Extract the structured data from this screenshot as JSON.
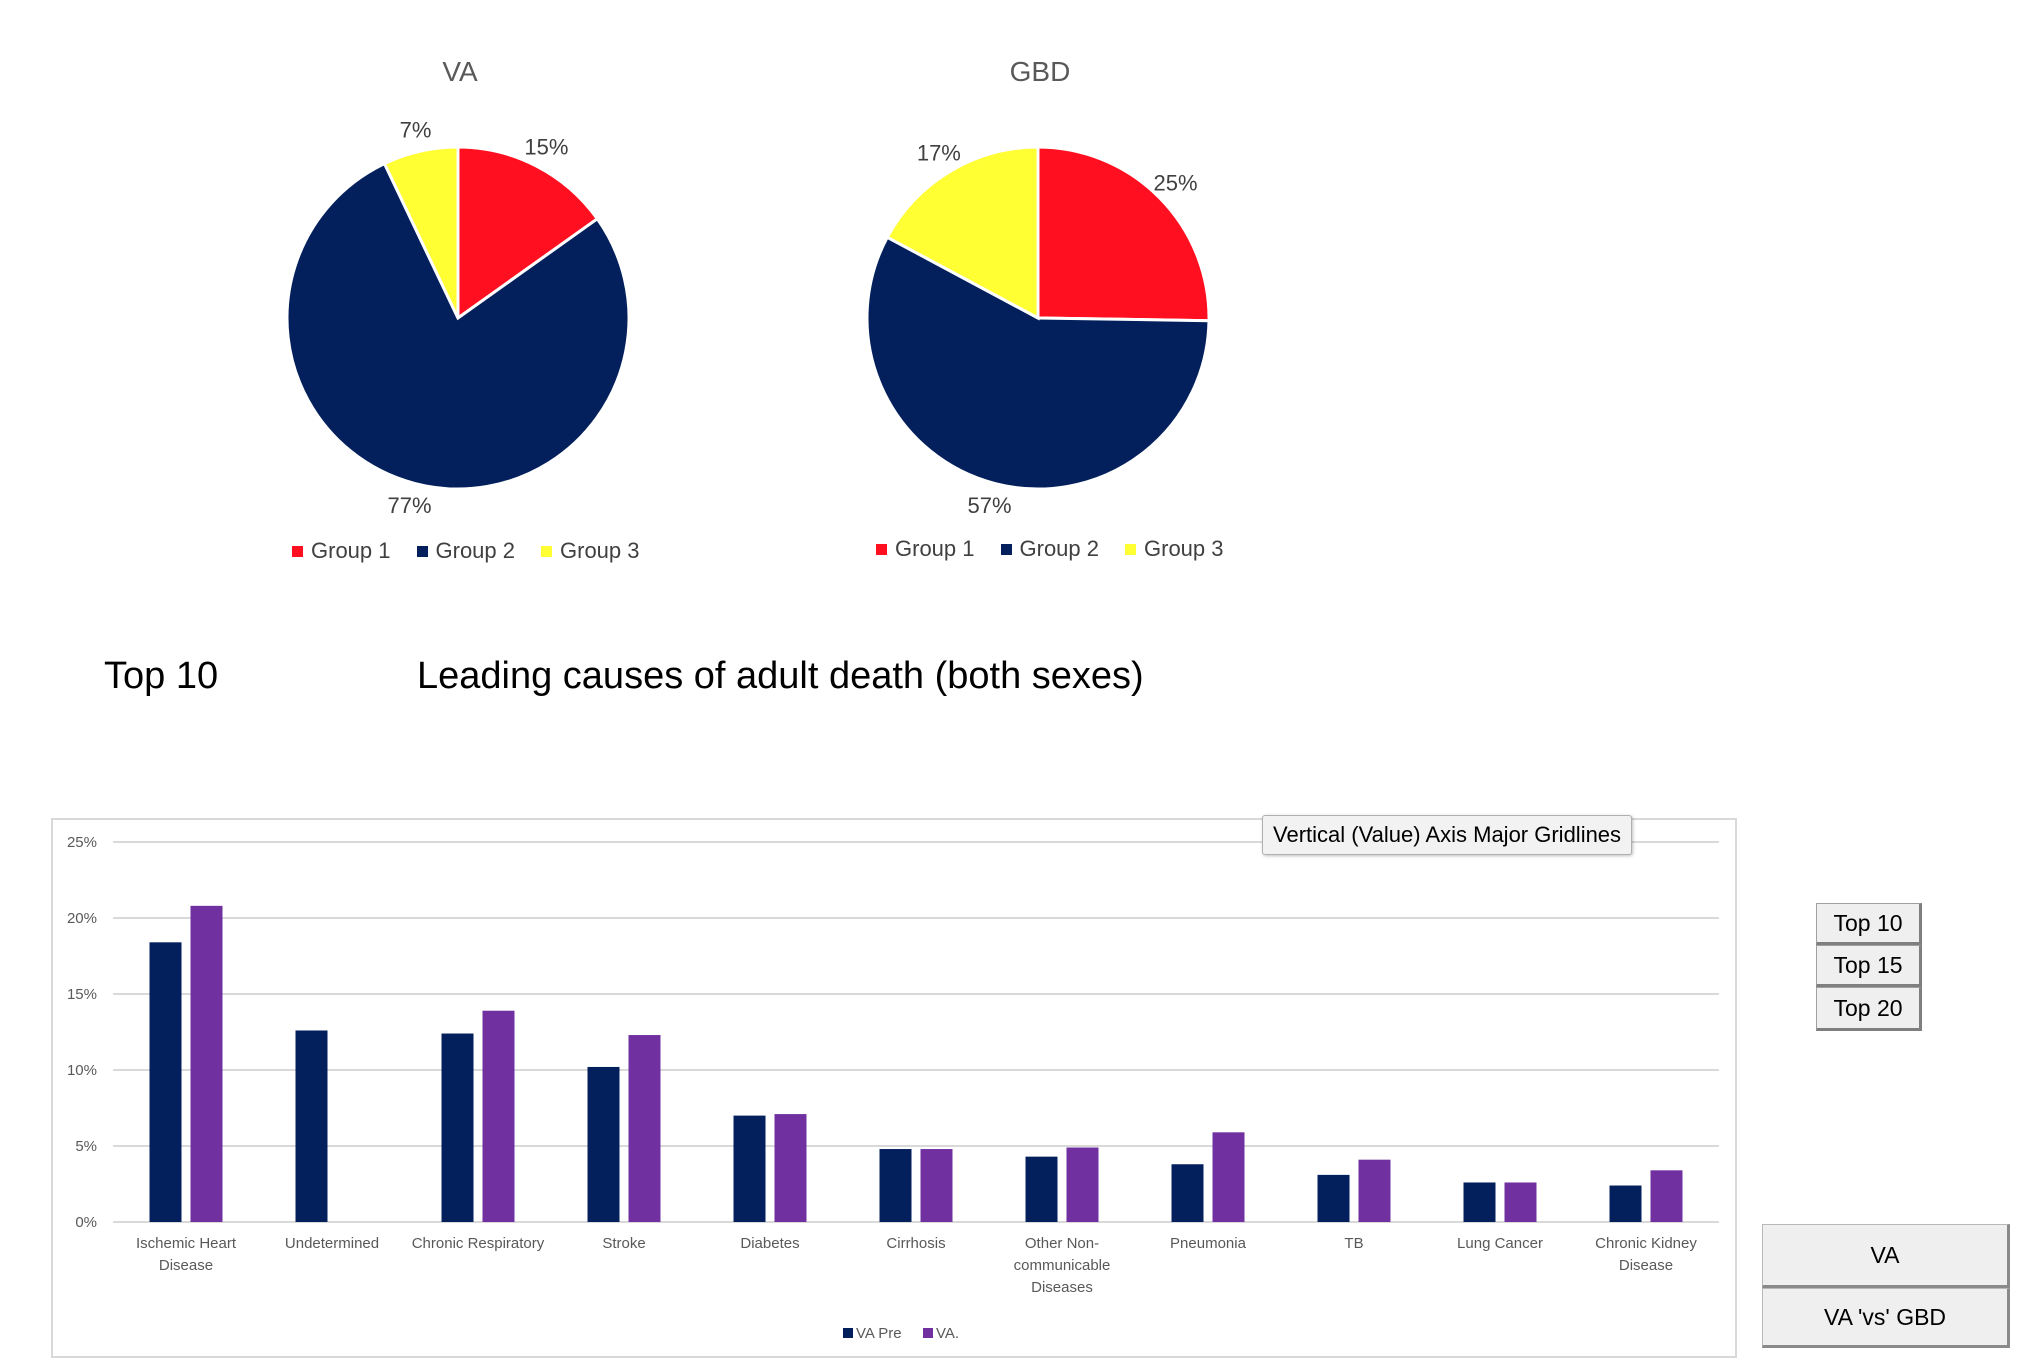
{
  "pie_charts": [
    {
      "title": "VA",
      "slices": [
        {
          "label": "Group 1",
          "value": 15,
          "pct_label": "15%",
          "color": "#ff0f1f"
        },
        {
          "label": "Group 2",
          "value": 77,
          "pct_label": "77%",
          "color": "#03205c"
        },
        {
          "label": "Group 3",
          "value": 7,
          "pct_label": "7%",
          "color": "#ffff33"
        }
      ]
    },
    {
      "title": "GBD",
      "slices": [
        {
          "label": "Group 1",
          "value": 25,
          "pct_label": "25%",
          "color": "#ff0f1f"
        },
        {
          "label": "Group 2",
          "value": 57,
          "pct_label": "57%",
          "color": "#03205c"
        },
        {
          "label": "Group 3",
          "value": 17,
          "pct_label": "17%",
          "color": "#ffff33"
        }
      ]
    }
  ],
  "section": {
    "top_label": "Top 10",
    "heading": "Leading causes of adult death (both sexes)"
  },
  "tooltip": "Vertical (Value) Axis Major Gridlines",
  "side_buttons": [
    "Top 10",
    "Top 15",
    "Top 20"
  ],
  "view_buttons": [
    "VA",
    "VA 'vs' GBD"
  ],
  "chart_data": [
    {
      "type": "pie",
      "title": "VA",
      "categories": [
        "Group 1",
        "Group 2",
        "Group 3"
      ],
      "values": [
        15,
        77,
        7
      ],
      "colors": [
        "#ff0f1f",
        "#03205c",
        "#ffff33"
      ],
      "legend": "bottom"
    },
    {
      "type": "pie",
      "title": "GBD",
      "categories": [
        "Group 1",
        "Group 2",
        "Group 3"
      ],
      "values": [
        25,
        57,
        17
      ],
      "colors": [
        "#ff0f1f",
        "#03205c",
        "#ffff33"
      ],
      "legend": "bottom"
    },
    {
      "type": "bar",
      "categories": [
        "Ischemic Heart Disease",
        "Undetermined",
        "Chronic Respiratory",
        "Stroke",
        "Diabetes",
        "Cirrhosis",
        "Other Non-communicable Diseases",
        "Pneumonia",
        "TB",
        "Lung Cancer",
        "Chronic Kidney Disease"
      ],
      "category_lines": [
        [
          "Ischemic Heart",
          "Disease"
        ],
        [
          "Undetermined"
        ],
        [
          "Chronic Respiratory"
        ],
        [
          "Stroke"
        ],
        [
          "Diabetes"
        ],
        [
          "Cirrhosis"
        ],
        [
          "Other Non-",
          "communicable",
          "Diseases"
        ],
        [
          "Pneumonia"
        ],
        [
          "TB"
        ],
        [
          "Lung Cancer"
        ],
        [
          "Chronic Kidney",
          "Disease"
        ]
      ],
      "series": [
        {
          "name": "VA Pre",
          "color": "#03205c",
          "values": [
            18.4,
            12.6,
            12.4,
            10.2,
            7.0,
            4.8,
            4.3,
            3.8,
            3.1,
            2.6,
            2.4
          ]
        },
        {
          "name": "VA.",
          "color": "#7030a0",
          "values": [
            20.8,
            null,
            13.9,
            12.3,
            7.1,
            4.8,
            4.9,
            5.9,
            4.1,
            2.6,
            3.4
          ]
        }
      ],
      "yticks": [
        "0%",
        "5%",
        "10%",
        "15%",
        "20%",
        "25%"
      ],
      "ylim": [
        0,
        25
      ],
      "grid": true,
      "legend": "bottom"
    }
  ]
}
